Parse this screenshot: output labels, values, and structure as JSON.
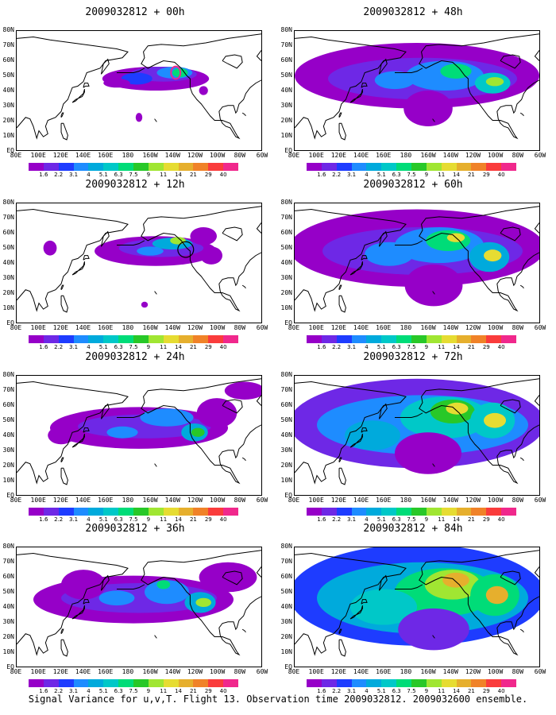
{
  "panels": [
    {
      "title": "2009032812 + 00h",
      "lead_hours": 0
    },
    {
      "title": "2009032812 + 48h",
      "lead_hours": 48
    },
    {
      "title": "2009032812 + 12h",
      "lead_hours": 12
    },
    {
      "title": "2009032812 + 60h",
      "lead_hours": 60
    },
    {
      "title": "2009032812 + 24h",
      "lead_hours": 24
    },
    {
      "title": "2009032812 + 72h",
      "lead_hours": 72
    },
    {
      "title": "2009032812 + 36h",
      "lead_hours": 36
    },
    {
      "title": "2009032812 + 84h",
      "lead_hours": 84
    }
  ],
  "lat_labels": [
    "80N",
    "70N",
    "60N",
    "50N",
    "40N",
    "30N",
    "20N",
    "10N",
    "EQ"
  ],
  "lon_labels": [
    "80E",
    "100E",
    "120E",
    "140E",
    "160E",
    "180",
    "160W",
    "140W",
    "120W",
    "100W",
    "80W",
    "60W"
  ],
  "colorbar": {
    "labels": [
      "1.6",
      "2.2",
      "3.1",
      "4",
      "5.1",
      "6.3",
      "7.5",
      "9",
      "11",
      "14",
      "21",
      "29",
      "40"
    ],
    "colors": [
      "#9600c8",
      "#6e28e6",
      "#1e3cff",
      "#1e8cff",
      "#00aadc",
      "#00c8c8",
      "#00dc78",
      "#28c828",
      "#a0e632",
      "#e6dc32",
      "#e6af2d",
      "#f08228",
      "#fa3c3c",
      "#f0288c"
    ]
  },
  "caption": "Signal Variance for u,v,T. Flight 13. Observation time 2009032812. 2009032600 ensemble."
}
